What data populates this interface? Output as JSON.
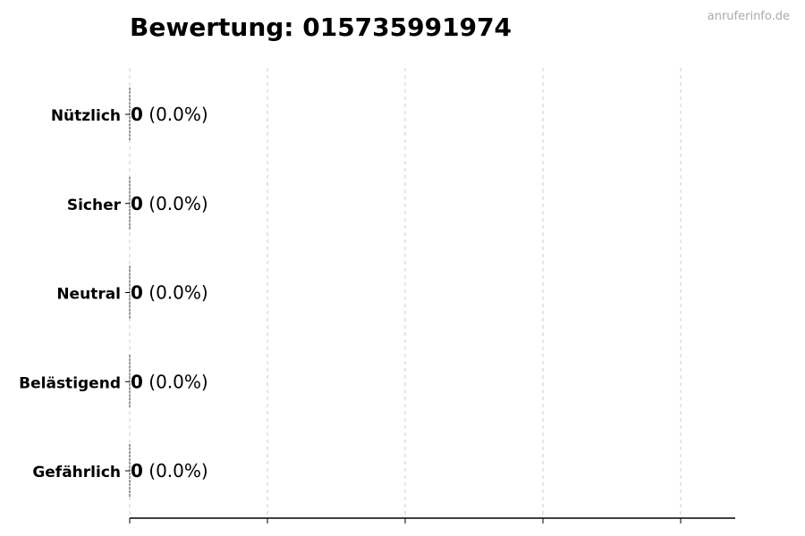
{
  "chart_data": {
    "type": "bar",
    "orientation": "horizontal",
    "title": "Bewertung: 015735991974",
    "watermark": "anruferinfo.de",
    "categories": [
      "Nützlich",
      "Sicher",
      "Neutral",
      "Belästigend",
      "Gefährlich"
    ],
    "values": [
      0,
      0,
      0,
      0,
      0
    ],
    "data_labels": [
      {
        "count": "0",
        "percent": "(0.0%)"
      },
      {
        "count": "0",
        "percent": "(0.0%)"
      },
      {
        "count": "0",
        "percent": "(0.0%)"
      },
      {
        "count": "0",
        "percent": "(0.0%)"
      },
      {
        "count": "0",
        "percent": "(0.0%)"
      }
    ],
    "xlabel": "",
    "ylabel": "",
    "grid": "vertical dashed",
    "x_tick_labels_shown": false
  }
}
